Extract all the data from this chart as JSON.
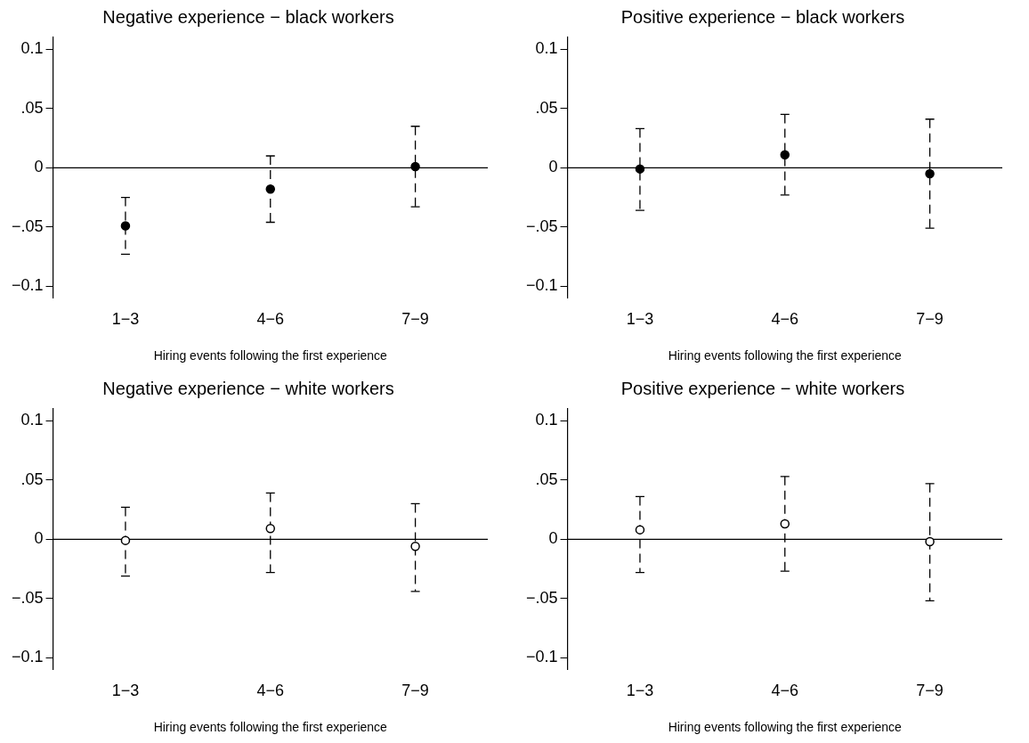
{
  "chart_data": [
    {
      "type": "scatter",
      "title": "Negative experience − black workers",
      "xlabel": "Hiring events following the first experience",
      "categories": [
        "1−3",
        "4−6",
        "7−9"
      ],
      "marker": "circle",
      "line_style": "dashed",
      "legend": false,
      "grid": false,
      "ylim": [
        -0.11,
        0.11
      ],
      "yticks": [
        {
          "value": 0.1,
          "label": "0.1"
        },
        {
          "value": 0.05,
          "label": ".05"
        },
        {
          "value": 0,
          "label": "0"
        },
        {
          "value": -0.05,
          "label": "−.05"
        },
        {
          "value": -0.1,
          "label": "−0.1"
        }
      ],
      "ref_lines": [
        {
          "axis": "y",
          "value": 0,
          "color": "#000000"
        }
      ],
      "series": [
        {
          "color": "#000000",
          "colors": [
            "#000000",
            "#000000",
            "#000000"
          ],
          "values": [
            -0.049,
            -0.018,
            0.001
          ],
          "errors": [
            [
              -0.073,
              -0.025
            ],
            [
              -0.046,
              0.01
            ],
            [
              -0.033,
              0.035
            ]
          ]
        }
      ]
    },
    {
      "type": "scatter",
      "title": "Positive experience − black workers",
      "xlabel": "Hiring events following the first experience",
      "categories": [
        "1−3",
        "4−6",
        "7−9"
      ],
      "marker": "circle",
      "line_style": "dashed",
      "legend": false,
      "grid": false,
      "ylim": [
        -0.11,
        0.11
      ],
      "yticks": [
        {
          "value": 0.1,
          "label": "0.1"
        },
        {
          "value": 0.05,
          "label": ".05"
        },
        {
          "value": 0,
          "label": "0"
        },
        {
          "value": -0.05,
          "label": "−.05"
        },
        {
          "value": -0.1,
          "label": "−0.1"
        }
      ],
      "ref_lines": [
        {
          "axis": "y",
          "value": 0,
          "color": "#000000"
        }
      ],
      "series": [
        {
          "color": "#000000",
          "colors": [
            "#000000",
            "#000000",
            "#000000"
          ],
          "values": [
            -0.001,
            0.011,
            -0.005
          ],
          "errors": [
            [
              -0.036,
              0.033
            ],
            [
              -0.023,
              0.045
            ],
            [
              -0.051,
              0.041
            ]
          ]
        }
      ]
    },
    {
      "type": "scatter",
      "title": "Negative experience − white workers",
      "xlabel": "Hiring events following the first experience",
      "categories": [
        "1−3",
        "4−6",
        "7−9"
      ],
      "marker": "circle",
      "line_style": "dashed",
      "legend": false,
      "grid": false,
      "ylim": [
        -0.11,
        0.11
      ],
      "yticks": [
        {
          "value": 0.1,
          "label": "0.1"
        },
        {
          "value": 0.05,
          "label": ".05"
        },
        {
          "value": 0,
          "label": "0"
        },
        {
          "value": -0.05,
          "label": "−.05"
        },
        {
          "value": -0.1,
          "label": "−0.1"
        }
      ],
      "ref_lines": [
        {
          "axis": "y",
          "value": 0,
          "color": "#000000"
        }
      ],
      "series": [
        {
          "color": "#000000",
          "colors": [
            "#ffffff",
            "#ffffff",
            "#ffffff"
          ],
          "values": [
            -0.001,
            0.009,
            -0.006
          ],
          "errors": [
            [
              -0.031,
              0.027
            ],
            [
              -0.028,
              0.039
            ],
            [
              -0.044,
              0.03
            ]
          ]
        }
      ]
    },
    {
      "type": "scatter",
      "title": "Positive experience − white workers",
      "xlabel": "Hiring events following the first experience",
      "categories": [
        "1−3",
        "4−6",
        "7−9"
      ],
      "marker": "circle",
      "line_style": "dashed",
      "legend": false,
      "grid": false,
      "ylim": [
        -0.11,
        0.11
      ],
      "yticks": [
        {
          "value": 0.1,
          "label": "0.1"
        },
        {
          "value": 0.05,
          "label": ".05"
        },
        {
          "value": 0,
          "label": "0"
        },
        {
          "value": -0.05,
          "label": "−.05"
        },
        {
          "value": -0.1,
          "label": "−0.1"
        }
      ],
      "ref_lines": [
        {
          "axis": "y",
          "value": 0,
          "color": "#000000"
        }
      ],
      "series": [
        {
          "color": "#000000",
          "colors": [
            "#ffffff",
            "#ffffff",
            "#ffffff"
          ],
          "values": [
            0.008,
            0.013,
            -0.002
          ],
          "errors": [
            [
              -0.028,
              0.036
            ],
            [
              -0.027,
              0.053
            ],
            [
              -0.052,
              0.047
            ]
          ]
        }
      ]
    }
  ]
}
